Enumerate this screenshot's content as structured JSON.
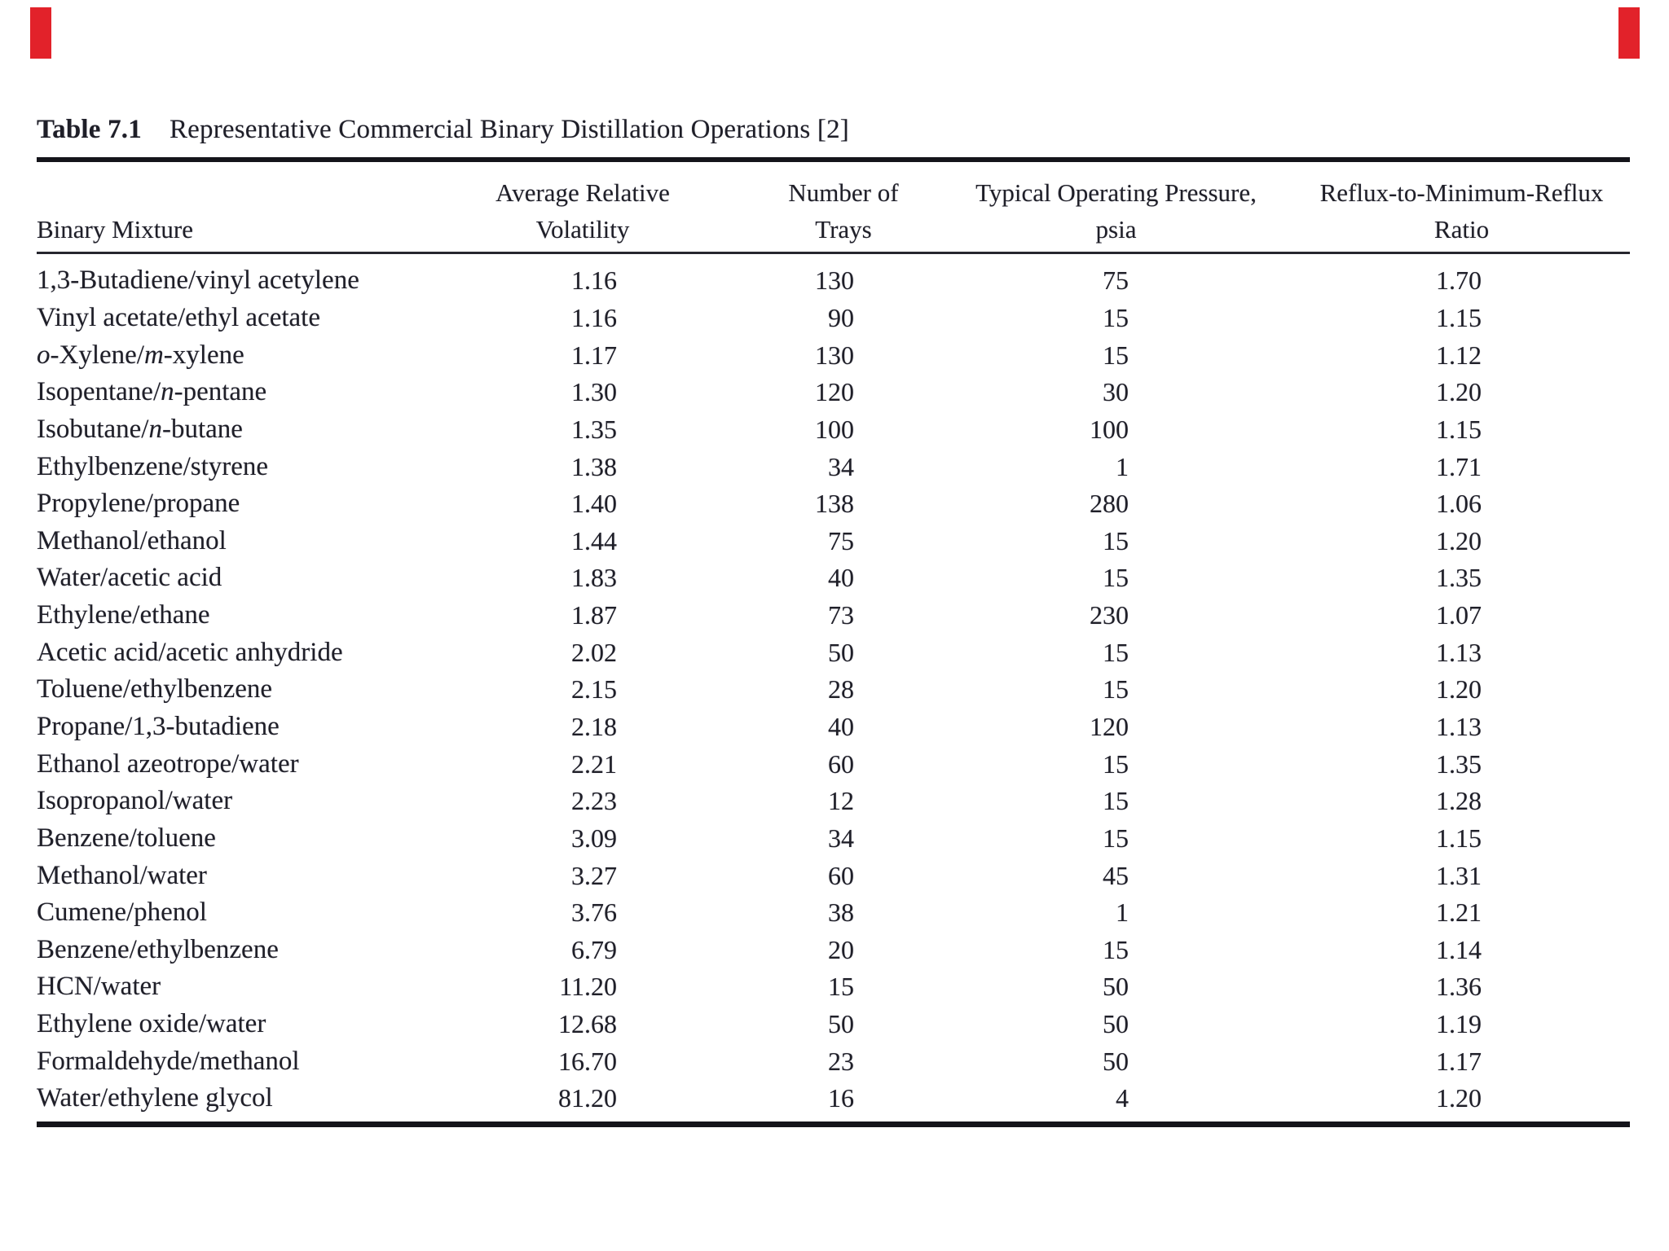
{
  "title": {
    "label": "Table 7.1",
    "text": "Representative Commercial Binary Distillation Operations [2]"
  },
  "table": {
    "col_headers": [
      {
        "line1": "",
        "line2": "Binary Mixture"
      },
      {
        "line1": "Average Relative",
        "line2": "Volatility"
      },
      {
        "line1": "Number of",
        "line2": "Trays"
      },
      {
        "line1": "Typical Operating Pressure,",
        "line2": "psia"
      },
      {
        "line1": "Reflux-to-Minimum-Reflux",
        "line2": "Ratio"
      }
    ],
    "rows": [
      {
        "mixture": "1,3-Butadiene/vinyl acetylene",
        "volatility": "1.16",
        "trays": "130",
        "pressure": "75",
        "ratio": "1.70"
      },
      {
        "mixture": "Vinyl acetate/ethyl acetate",
        "volatility": "1.16",
        "trays": "90",
        "pressure": "15",
        "ratio": "1.15"
      },
      {
        "mixture": "*o*-Xylene/*m*-xylene",
        "volatility": "1.17",
        "trays": "130",
        "pressure": "15",
        "ratio": "1.12"
      },
      {
        "mixture": "Isopentane/*n*-pentane",
        "volatility": "1.30",
        "trays": "120",
        "pressure": "30",
        "ratio": "1.20"
      },
      {
        "mixture": "Isobutane/*n*-butane",
        "volatility": "1.35",
        "trays": "100",
        "pressure": "100",
        "ratio": "1.15"
      },
      {
        "mixture": "Ethylbenzene/styrene",
        "volatility": "1.38",
        "trays": "34",
        "pressure": "1",
        "ratio": "1.71"
      },
      {
        "mixture": "Propylene/propane",
        "volatility": "1.40",
        "trays": "138",
        "pressure": "280",
        "ratio": "1.06"
      },
      {
        "mixture": "Methanol/ethanol",
        "volatility": "1.44",
        "trays": "75",
        "pressure": "15",
        "ratio": "1.20"
      },
      {
        "mixture": "Water/acetic acid",
        "volatility": "1.83",
        "trays": "40",
        "pressure": "15",
        "ratio": "1.35"
      },
      {
        "mixture": "Ethylene/ethane",
        "volatility": "1.87",
        "trays": "73",
        "pressure": "230",
        "ratio": "1.07"
      },
      {
        "mixture": "Acetic acid/acetic anhydride",
        "volatility": "2.02",
        "trays": "50",
        "pressure": "15",
        "ratio": "1.13"
      },
      {
        "mixture": "Toluene/ethylbenzene",
        "volatility": "2.15",
        "trays": "28",
        "pressure": "15",
        "ratio": "1.20"
      },
      {
        "mixture": "Propane/1,3-butadiene",
        "volatility": "2.18",
        "trays": "40",
        "pressure": "120",
        "ratio": "1.13"
      },
      {
        "mixture": "Ethanol azeotrope/water",
        "volatility": "2.21",
        "trays": "60",
        "pressure": "15",
        "ratio": "1.35"
      },
      {
        "mixture": "Isopropanol/water",
        "volatility": "2.23",
        "trays": "12",
        "pressure": "15",
        "ratio": "1.28"
      },
      {
        "mixture": "Benzene/toluene",
        "volatility": "3.09",
        "trays": "34",
        "pressure": "15",
        "ratio": "1.15"
      },
      {
        "mixture": "Methanol/water",
        "volatility": "3.27",
        "trays": "60",
        "pressure": "45",
        "ratio": "1.31"
      },
      {
        "mixture": "Cumene/phenol",
        "volatility": "3.76",
        "trays": "38",
        "pressure": "1",
        "ratio": "1.21"
      },
      {
        "mixture": "Benzene/ethylbenzene",
        "volatility": "6.79",
        "trays": "20",
        "pressure": "15",
        "ratio": "1.14"
      },
      {
        "mixture": "HCN/water",
        "volatility": "11.20",
        "trays": "15",
        "pressure": "50",
        "ratio": "1.36"
      },
      {
        "mixture": "Ethylene oxide/water",
        "volatility": "12.68",
        "trays": "50",
        "pressure": "50",
        "ratio": "1.19"
      },
      {
        "mixture": "Formaldehyde/methanol",
        "volatility": "16.70",
        "trays": "23",
        "pressure": "50",
        "ratio": "1.17"
      },
      {
        "mixture": "Water/ethylene glycol",
        "volatility": "81.20",
        "trays": "16",
        "pressure": "4",
        "ratio": "1.20"
      }
    ]
  },
  "scan_marks": {
    "color": "#e2222a"
  },
  "chart_data": {
    "type": "table",
    "title": "Table 7.1 Representative Commercial Binary Distillation Operations [2]",
    "columns": [
      "Binary Mixture",
      "Average Relative Volatility",
      "Number of Trays",
      "Typical Operating Pressure, psia",
      "Reflux-to-Minimum-Reflux Ratio"
    ],
    "rows": [
      [
        "1,3-Butadiene/vinyl acetylene",
        "1.16",
        "130",
        "75",
        "1.70"
      ],
      [
        "Vinyl acetate/ethyl acetate",
        "1.16",
        "90",
        "15",
        "1.15"
      ],
      [
        "o-Xylene/m-xylene",
        "1.17",
        "130",
        "15",
        "1.12"
      ],
      [
        "Isopentane/n-pentane",
        "1.30",
        "120",
        "30",
        "1.20"
      ],
      [
        "Isobutane/n-butane",
        "1.35",
        "100",
        "100",
        "1.15"
      ],
      [
        "Ethylbenzene/styrene",
        "1.38",
        "34",
        "1",
        "1.71"
      ],
      [
        "Propylene/propane",
        "1.40",
        "138",
        "280",
        "1.06"
      ],
      [
        "Methanol/ethanol",
        "1.44",
        "75",
        "15",
        "1.20"
      ],
      [
        "Water/acetic acid",
        "1.83",
        "40",
        "15",
        "1.35"
      ],
      [
        "Ethylene/ethane",
        "1.87",
        "73",
        "230",
        "1.07"
      ],
      [
        "Acetic acid/acetic anhydride",
        "2.02",
        "50",
        "15",
        "1.13"
      ],
      [
        "Toluene/ethylbenzene",
        "2.15",
        "28",
        "15",
        "1.20"
      ],
      [
        "Propane/1,3-butadiene",
        "2.18",
        "40",
        "120",
        "1.13"
      ],
      [
        "Ethanol azeotrope/water",
        "2.21",
        "60",
        "15",
        "1.35"
      ],
      [
        "Isopropanol/water",
        "2.23",
        "12",
        "15",
        "1.28"
      ],
      [
        "Benzene/toluene",
        "3.09",
        "34",
        "15",
        "1.15"
      ],
      [
        "Methanol/water",
        "3.27",
        "60",
        "45",
        "1.31"
      ],
      [
        "Cumene/phenol",
        "3.76",
        "38",
        "1",
        "1.21"
      ],
      [
        "Benzene/ethylbenzene",
        "6.79",
        "20",
        "15",
        "1.14"
      ],
      [
        "HCN/water",
        "11.20",
        "15",
        "50",
        "1.36"
      ],
      [
        "Ethylene oxide/water",
        "12.68",
        "50",
        "50",
        "1.19"
      ],
      [
        "Formaldehyde/methanol",
        "16.70",
        "23",
        "50",
        "1.17"
      ],
      [
        "Water/ethylene glycol",
        "81.20",
        "16",
        "4",
        "1.20"
      ]
    ]
  }
}
